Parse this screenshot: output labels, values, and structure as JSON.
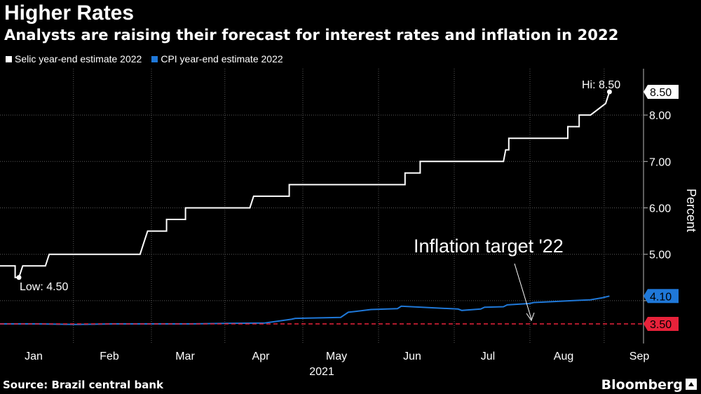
{
  "header": {
    "title": "Higher Rates",
    "subtitle": "Analysts are raising their forecast for interest rates and inflation in 2022"
  },
  "footer": {
    "source": "Source: Brazil central bank",
    "brand": "Bloomberg"
  },
  "chart_data": {
    "type": "line",
    "title": "Higher Rates",
    "subtitle": "Analysts are raising their forecast for interest rates and inflation in 2022",
    "xlabel": "2021",
    "ylabel": "Percent",
    "ylim": [
      3.0,
      8.8
    ],
    "yticks": [
      4.0,
      5.0,
      6.0,
      7.0,
      8.0
    ],
    "ytick_labels": [
      "",
      "5.00",
      "6.00",
      "7.00",
      "8.00"
    ],
    "xlim": [
      0,
      8.5
    ],
    "month_ticks": [
      0.5,
      1.5,
      2.5,
      3.5,
      4.5,
      5.5,
      6.5,
      7.5,
      8.5
    ],
    "month_labels": [
      "Jan",
      "Feb",
      "Mar",
      "Apr",
      "May",
      "Jun",
      "Jul",
      "Aug",
      "Sep"
    ],
    "year_label": "2021",
    "grid": true,
    "legend_position": "top-left",
    "series": [
      {
        "name": "Selic year-end estimate 2022",
        "color": "#ffffff",
        "x": [
          0,
          0.2,
          0.2,
          0.25,
          0.3,
          0.3,
          0.6,
          0.65,
          0.65,
          1.85,
          1.9,
          1.95,
          2.2,
          2.2,
          2.45,
          2.45,
          2.6,
          2.6,
          3.3,
          3.35,
          3.5,
          3.5,
          3.82,
          3.82,
          3.97,
          3.97,
          5.35,
          5.35,
          5.55,
          5.55,
          6.65,
          6.68,
          6.72,
          6.72,
          7.5,
          7.5,
          7.65,
          7.65,
          7.8,
          7.8,
          8.0,
          8.05
        ],
        "values": [
          4.75,
          4.75,
          4.5,
          4.5,
          4.75,
          4.75,
          4.75,
          5.0,
          5.0,
          5.0,
          5.25,
          5.5,
          5.5,
          5.75,
          5.75,
          6.0,
          6.0,
          6.0,
          6.0,
          6.25,
          6.25,
          6.25,
          6.25,
          6.5,
          6.5,
          6.5,
          6.5,
          6.75,
          6.75,
          7.0,
          7.0,
          7.25,
          7.25,
          7.5,
          7.5,
          7.75,
          7.75,
          8.0,
          8.0,
          8.0,
          8.25,
          8.5
        ]
      },
      {
        "name": "CPI year-end estimate 2022",
        "color": "#1f78d8",
        "x": [
          0,
          0.5,
          1.0,
          1.5,
          2.0,
          2.5,
          3.0,
          3.5,
          3.85,
          3.9,
          4.5,
          4.6,
          4.75,
          4.9,
          5.25,
          5.3,
          6.05,
          6.1,
          6.35,
          6.4,
          6.65,
          6.7,
          7.0,
          7.05,
          7.3,
          7.55,
          7.8,
          7.95,
          8.05
        ],
        "values": [
          3.5,
          3.5,
          3.49,
          3.5,
          3.5,
          3.5,
          3.51,
          3.52,
          3.6,
          3.62,
          3.64,
          3.75,
          3.78,
          3.81,
          3.83,
          3.88,
          3.82,
          3.79,
          3.82,
          3.86,
          3.87,
          3.91,
          3.94,
          3.96,
          3.98,
          4.0,
          4.02,
          4.06,
          4.1
        ]
      },
      {
        "name": "Inflation target '22",
        "color": "#e8223a",
        "style": "dashed",
        "x": [
          0,
          8.5
        ],
        "values": [
          3.5,
          3.5
        ]
      }
    ],
    "annotations": [
      {
        "text": "Low: 4.50",
        "x": 0.25,
        "y": 4.5
      },
      {
        "text": "Hi: 8.50",
        "x": 8.05,
        "y": 8.5
      },
      {
        "text": "Inflation target '22",
        "x": 6.35,
        "y": 3.5
      }
    ],
    "end_labels": [
      {
        "text": "8.50",
        "value": 8.5,
        "bg": "#ffffff",
        "fg": "#000000"
      },
      {
        "text": "4.10",
        "value": 4.1,
        "bg": "#1f78d8",
        "fg": "#000000"
      },
      {
        "text": "3.50",
        "value": 3.5,
        "bg": "#e8223a",
        "fg": "#000000"
      }
    ]
  }
}
